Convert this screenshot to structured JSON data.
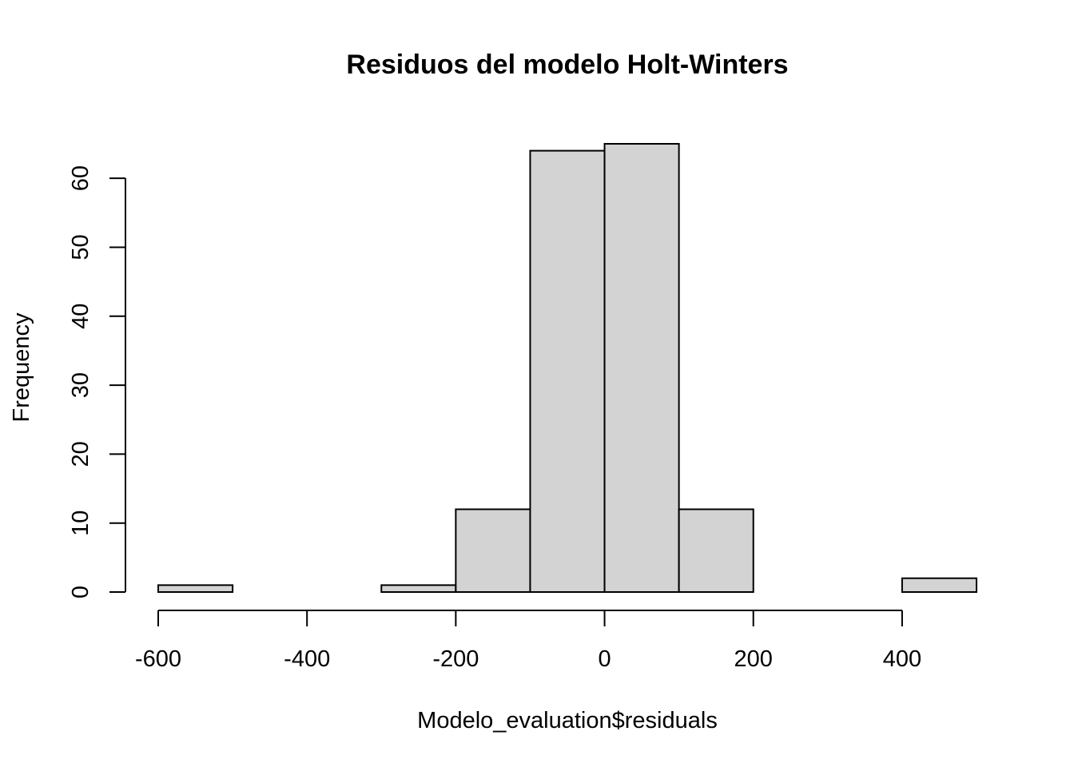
{
  "chart_data": {
    "type": "bar",
    "subtype": "histogram",
    "title": "Residuos del modelo Holt-Winters",
    "xlabel": "Modelo_evaluation$residuals",
    "ylabel": "Frequency",
    "bins": [
      {
        "start": -600,
        "end": -500,
        "count": 1
      },
      {
        "start": -500,
        "end": -400,
        "count": 0
      },
      {
        "start": -400,
        "end": -300,
        "count": 0
      },
      {
        "start": -300,
        "end": -200,
        "count": 1
      },
      {
        "start": -200,
        "end": -100,
        "count": 12
      },
      {
        "start": -100,
        "end": 0,
        "count": 64
      },
      {
        "start": 0,
        "end": 100,
        "count": 65
      },
      {
        "start": 100,
        "end": 200,
        "count": 12
      },
      {
        "start": 200,
        "end": 300,
        "count": 0
      },
      {
        "start": 300,
        "end": 400,
        "count": 0
      },
      {
        "start": 400,
        "end": 500,
        "count": 2
      }
    ],
    "xlim": [
      -600,
      500
    ],
    "ylim": [
      0,
      65
    ],
    "x_ticks": [
      -600,
      -400,
      -200,
      0,
      200,
      400
    ],
    "y_ticks": [
      0,
      10,
      20,
      30,
      40,
      50,
      60
    ],
    "bar_fill": "#d3d3d3",
    "bar_stroke": "#000000",
    "grid": false,
    "legend": "none"
  }
}
